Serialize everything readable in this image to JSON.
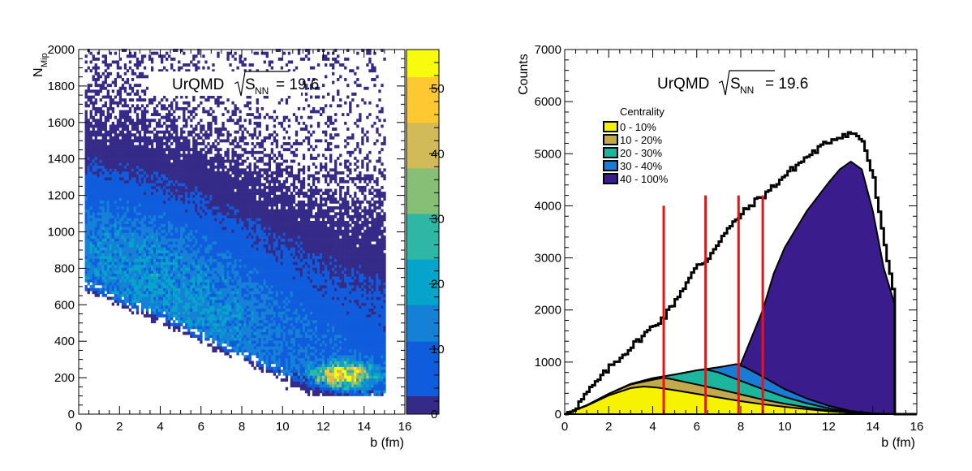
{
  "chart_data": [
    {
      "type": "heatmap",
      "title": "UrQMD",
      "energy_label": "S",
      "energy_sub": "NN",
      "energy_value": "= 19.6",
      "xlabel": "b (fm)",
      "ylabel": "N",
      "ylabel_sub": "Mip",
      "xlim": [
        0,
        16
      ],
      "ylim": [
        0,
        2000
      ],
      "x_ticks": [
        "0",
        "2",
        "4",
        "6",
        "8",
        "10",
        "12",
        "14",
        "16"
      ],
      "y_ticks": [
        "0",
        "200",
        "400",
        "600",
        "800",
        "1000",
        "1200",
        "1400",
        "1600",
        "1800",
        "2000"
      ],
      "x_tick_values": [
        0,
        2,
        4,
        6,
        8,
        10,
        12,
        14,
        16
      ],
      "y_tick_values": [
        0,
        200,
        400,
        600,
        800,
        1000,
        1200,
        1400,
        1600,
        1800,
        2000
      ],
      "colorbar": {
        "zlim": [
          0,
          56
        ],
        "ticks": [
          "0",
          "10",
          "20",
          "30",
          "40",
          "50"
        ],
        "tick_values": [
          0,
          10,
          20,
          30,
          40,
          50
        ],
        "palette": [
          "#352a87",
          "#0f5cdd",
          "#1481d6",
          "#06a4ca",
          "#2eb7a4",
          "#87bf77",
          "#d1bb59",
          "#fec832",
          "#f9fb0e"
        ]
      },
      "ridge": {
        "b": [
          0.5,
          2,
          4,
          6,
          8,
          10,
          12,
          13,
          14,
          15
        ],
        "nmip_center": [
          880,
          820,
          720,
          600,
          480,
          380,
          280,
          230,
          200,
          185
        ],
        "nmip_lower": [
          720,
          640,
          560,
          440,
          340,
          240,
          170,
          140,
          125,
          120
        ]
      },
      "b_range": [
        0.3,
        15
      ],
      "peak": {
        "b": 13,
        "nmip": 210,
        "count": 55
      }
    },
    {
      "type": "area",
      "title": "UrQMD",
      "energy_label": "S",
      "energy_sub": "NN",
      "energy_value": "= 19.6",
      "xlabel": "b (fm)",
      "ylabel": "Counts",
      "xlim": [
        0,
        16
      ],
      "ylim": [
        0,
        7000
      ],
      "x_ticks": [
        "0",
        "2",
        "4",
        "6",
        "8",
        "10",
        "12",
        "14",
        "16"
      ],
      "y_ticks": [
        "0",
        "1000",
        "2000",
        "3000",
        "4000",
        "5000",
        "6000",
        "7000"
      ],
      "x_tick_values": [
        0,
        2,
        4,
        6,
        8,
        10,
        12,
        14,
        16
      ],
      "y_tick_values": [
        0,
        1000,
        2000,
        3000,
        4000,
        5000,
        6000,
        7000
      ],
      "legend": {
        "title": "Centrality",
        "placement": "top-left",
        "entries": [
          "0 - 10%",
          "10 - 20%",
          "20 - 30%",
          "30 - 40%",
          "40 - 100%"
        ]
      },
      "cut_lines": [
        4.5,
        6.4,
        7.9,
        9.0
      ],
      "cut_line_tops": [
        4000,
        4200,
        4200,
        4200
      ],
      "series": [
        {
          "name": "0 - 10%",
          "color": "#f6f200",
          "x": [
            0,
            1,
            2,
            3,
            3.6,
            4.2,
            5,
            6,
            7,
            8,
            9,
            10,
            11,
            12,
            13,
            14,
            15,
            15.01
          ],
          "y": [
            0,
            160,
            360,
            500,
            530,
            510,
            460,
            390,
            320,
            250,
            190,
            140,
            95,
            55,
            28,
            8,
            0,
            0
          ]
        },
        {
          "name": "10 - 20%",
          "color": "#c2a94a",
          "x": [
            0,
            1,
            2,
            3,
            4,
            4.5,
            5,
            6,
            7,
            8,
            9,
            10,
            11,
            12,
            13,
            14,
            15,
            15.01
          ],
          "y": [
            0,
            170,
            390,
            570,
            660,
            700,
            660,
            570,
            480,
            380,
            280,
            200,
            130,
            75,
            35,
            10,
            0,
            0
          ]
        },
        {
          "name": "20 - 30%",
          "color": "#1cb59e",
          "x": [
            0,
            1,
            2,
            3,
            4,
            5,
            6,
            6.4,
            7,
            8,
            9,
            10,
            11,
            12,
            13,
            14,
            15,
            15.01
          ],
          "y": [
            0,
            170,
            390,
            580,
            690,
            760,
            840,
            860,
            800,
            640,
            480,
            330,
            210,
            110,
            45,
            12,
            0,
            0
          ]
        },
        {
          "name": "30 - 40%",
          "color": "#1a7bd4",
          "x": [
            0,
            1,
            2,
            3,
            4,
            5,
            6,
            7,
            7.8,
            8.2,
            9,
            10,
            11,
            12,
            13,
            14,
            15,
            15.01
          ],
          "y": [
            0,
            170,
            390,
            580,
            690,
            760,
            840,
            900,
            960,
            900,
            720,
            480,
            300,
            160,
            60,
            15,
            0,
            0
          ]
        },
        {
          "name": "40 - 100%",
          "color": "#3b1c8c",
          "x": [
            0,
            1,
            2,
            3,
            4,
            5,
            6,
            7,
            8,
            9,
            9.5,
            10,
            11,
            12,
            12.5,
            13,
            13.5,
            14,
            14.5,
            15,
            15.01
          ],
          "y": [
            0,
            170,
            390,
            580,
            690,
            760,
            840,
            900,
            960,
            2000,
            2700,
            3200,
            3900,
            4450,
            4700,
            4850,
            4700,
            3900,
            2800,
            2100,
            0
          ]
        }
      ],
      "total": {
        "x": [
          0,
          0.5,
          1,
          2,
          3,
          4,
          4.5,
          5,
          6,
          6.4,
          7,
          7.9,
          8.5,
          9,
          10,
          11,
          12,
          12.5,
          13,
          13.5,
          14,
          14.5,
          15,
          15.01
        ],
        "y": [
          0,
          150,
          420,
          900,
          1300,
          1700,
          1880,
          2200,
          2850,
          2950,
          3350,
          3800,
          4050,
          4200,
          4600,
          4950,
          5250,
          5350,
          5400,
          5250,
          4500,
          3200,
          2200,
          0
        ]
      }
    }
  ]
}
